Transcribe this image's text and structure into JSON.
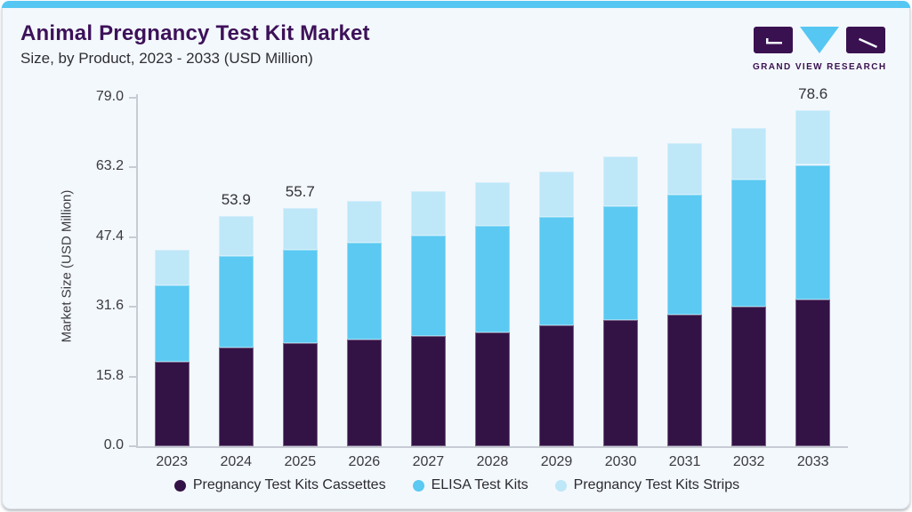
{
  "page": {
    "title": "Animal Pregnancy Test Kit Market",
    "subtitle": "Size, by Product, 2023 - 2033 (USD Million)",
    "logo": {
      "text": "GRAND VIEW RESEARCH"
    },
    "colors": {
      "accent_top_bar": "#56C7F2",
      "title_purple": "#3D1159",
      "logo_purple": "#3A1150",
      "logo_blue": "#56C7F2",
      "card_background": "#F3F8FC",
      "axis_gray": "#C7CCD4"
    }
  },
  "chart_data": {
    "type": "bar",
    "stacked": true,
    "title": "Animal Pregnancy Test Kit Market",
    "subtitle": "Size, by Product, 2023 - 2033 (USD Million)",
    "xlabel": "",
    "ylabel": "Market Size (USD Million)",
    "categories": [
      "2023",
      "2024",
      "2025",
      "2026",
      "2027",
      "2028",
      "2029",
      "2030",
      "2031",
      "2032",
      "2033"
    ],
    "series": [
      {
        "name": "Pregnancy Test Kits Cassettes",
        "color": "#331246",
        "values": [
          19.7,
          23.0,
          24.1,
          24.9,
          25.8,
          26.7,
          28.2,
          29.5,
          30.8,
          32.7,
          34.3
        ]
      },
      {
        "name": "ELISA Test Kits",
        "color": "#5BC9F2",
        "values": [
          18.0,
          21.4,
          21.8,
          22.8,
          23.4,
          24.9,
          25.4,
          26.6,
          28.1,
          29.6,
          31.5
        ]
      },
      {
        "name": "Pregnancy Test Kits Strips",
        "color": "#BEE7F8",
        "values": [
          8.2,
          9.5,
          9.8,
          9.6,
          10.5,
          10.2,
          10.7,
          11.6,
          12.0,
          12.1,
          12.8
        ]
      }
    ],
    "totals": [
      45.9,
      53.9,
      55.7,
      57.3,
      59.7,
      61.8,
      64.3,
      67.7,
      70.9,
      74.4,
      78.6
    ],
    "bar_value_labels": {
      "2024": "53.9",
      "2025": "55.7",
      "2033": "78.6"
    },
    "yticks": [
      0.0,
      15.8,
      31.6,
      47.4,
      63.2,
      79.0
    ],
    "ytick_labels": [
      "0.0",
      "15.8",
      "31.6",
      "47.4",
      "63.2",
      "79.0"
    ],
    "ylim": [
      0,
      79.0
    ],
    "grid": false,
    "legend_position": "bottom"
  }
}
